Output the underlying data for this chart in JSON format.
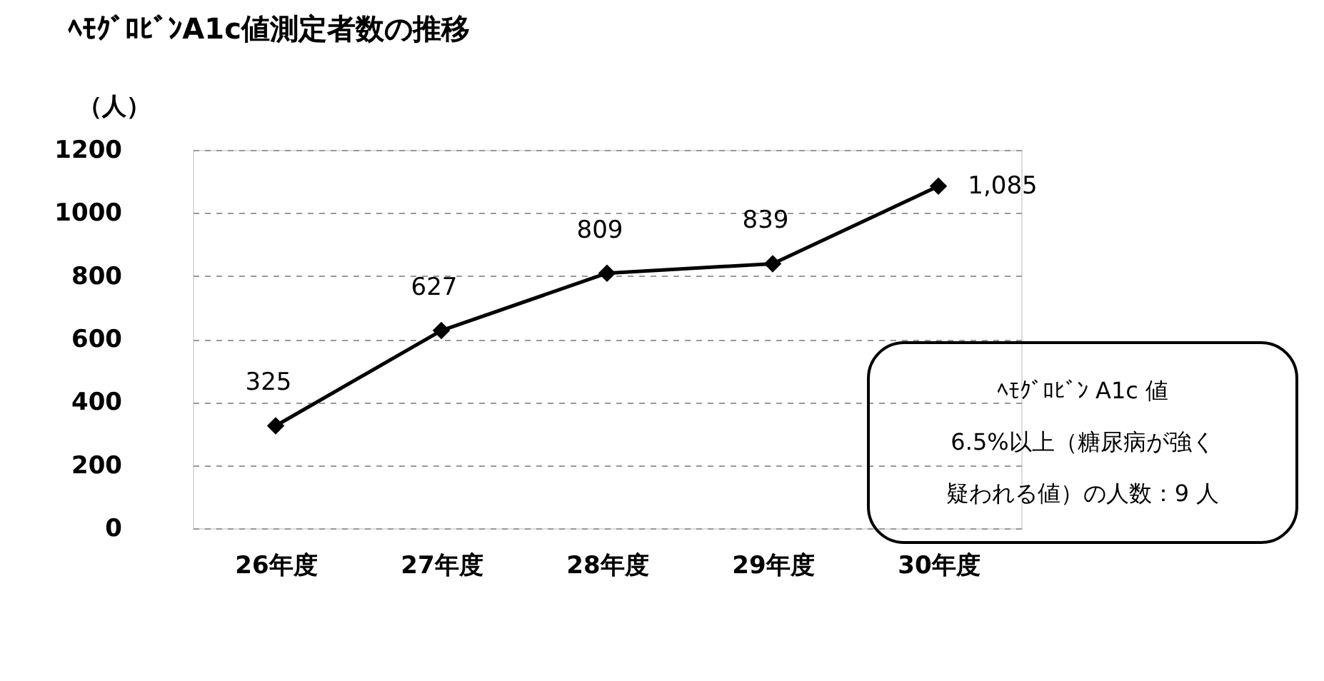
{
  "chart_data": {
    "type": "line",
    "title": "ﾍﾓｸﾞﾛﾋﾞﾝA1c値測定者数の推移",
    "ylabel": "（人）",
    "categories": [
      "26年度",
      "27年度",
      "28年度",
      "29年度",
      "30年度"
    ],
    "series": [
      {
        "color": "#000000",
        "values": [
          325,
          627,
          809,
          839,
          1085
        ],
        "value_labels": [
          "325",
          "627",
          "809",
          "839",
          "1,085"
        ]
      }
    ],
    "ylim": [
      0,
      1200
    ],
    "yticks": [
      0,
      200,
      400,
      600,
      800,
      1000,
      1200
    ],
    "grid": "y",
    "marker": "diamond",
    "line_style": "solid",
    "annotations": [
      "ﾍﾓｸﾞﾛﾋﾞﾝ A1c 値 6.5%以上（糖尿病が強く疑われる値）の人数：9 人"
    ]
  }
}
